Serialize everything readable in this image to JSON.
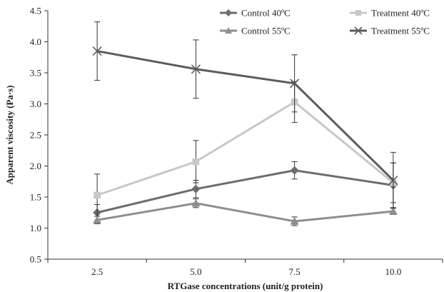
{
  "chart_data": {
    "type": "line",
    "xlabel": "RTGase concentrations (unit/g protein)",
    "ylabel": "Apparent viscosity (Pa·s)",
    "categories": [
      "2.5",
      "5.0",
      "7.5",
      "10.0"
    ],
    "ylim": [
      0.5,
      4.5
    ],
    "yticks": [
      "0.5",
      "1.0",
      "1.5",
      "2.0",
      "2.5",
      "3.0",
      "3.5",
      "4.0",
      "4.5"
    ],
    "grid": false,
    "legend_position": "top-right",
    "series": [
      {
        "name": "Control 40ºC",
        "marker": "diamond",
        "color": "#6d6d6d",
        "values": [
          1.25,
          1.63,
          1.93,
          1.69
        ],
        "errors": [
          0.13,
          0.14,
          0.14,
          0.36
        ]
      },
      {
        "name": "Treatment 40ºC",
        "marker": "square",
        "color": "#c8c8c8",
        "values": [
          1.53,
          2.07,
          3.03,
          1.73
        ],
        "errors": [
          0.34,
          0.34,
          0.33,
          0.32
        ]
      },
      {
        "name": "Control 55ºC",
        "marker": "triangle",
        "color": "#8e8e8e",
        "values": [
          1.13,
          1.4,
          1.11,
          1.27
        ],
        "errors": [
          0.06,
          0.07,
          0.07,
          0.05
        ]
      },
      {
        "name": "Treatment 55ºC",
        "marker": "x",
        "color": "#5c5c5c",
        "values": [
          3.85,
          3.56,
          3.33,
          1.77
        ],
        "errors": [
          0.47,
          0.47,
          0.46,
          0.45
        ]
      }
    ]
  }
}
